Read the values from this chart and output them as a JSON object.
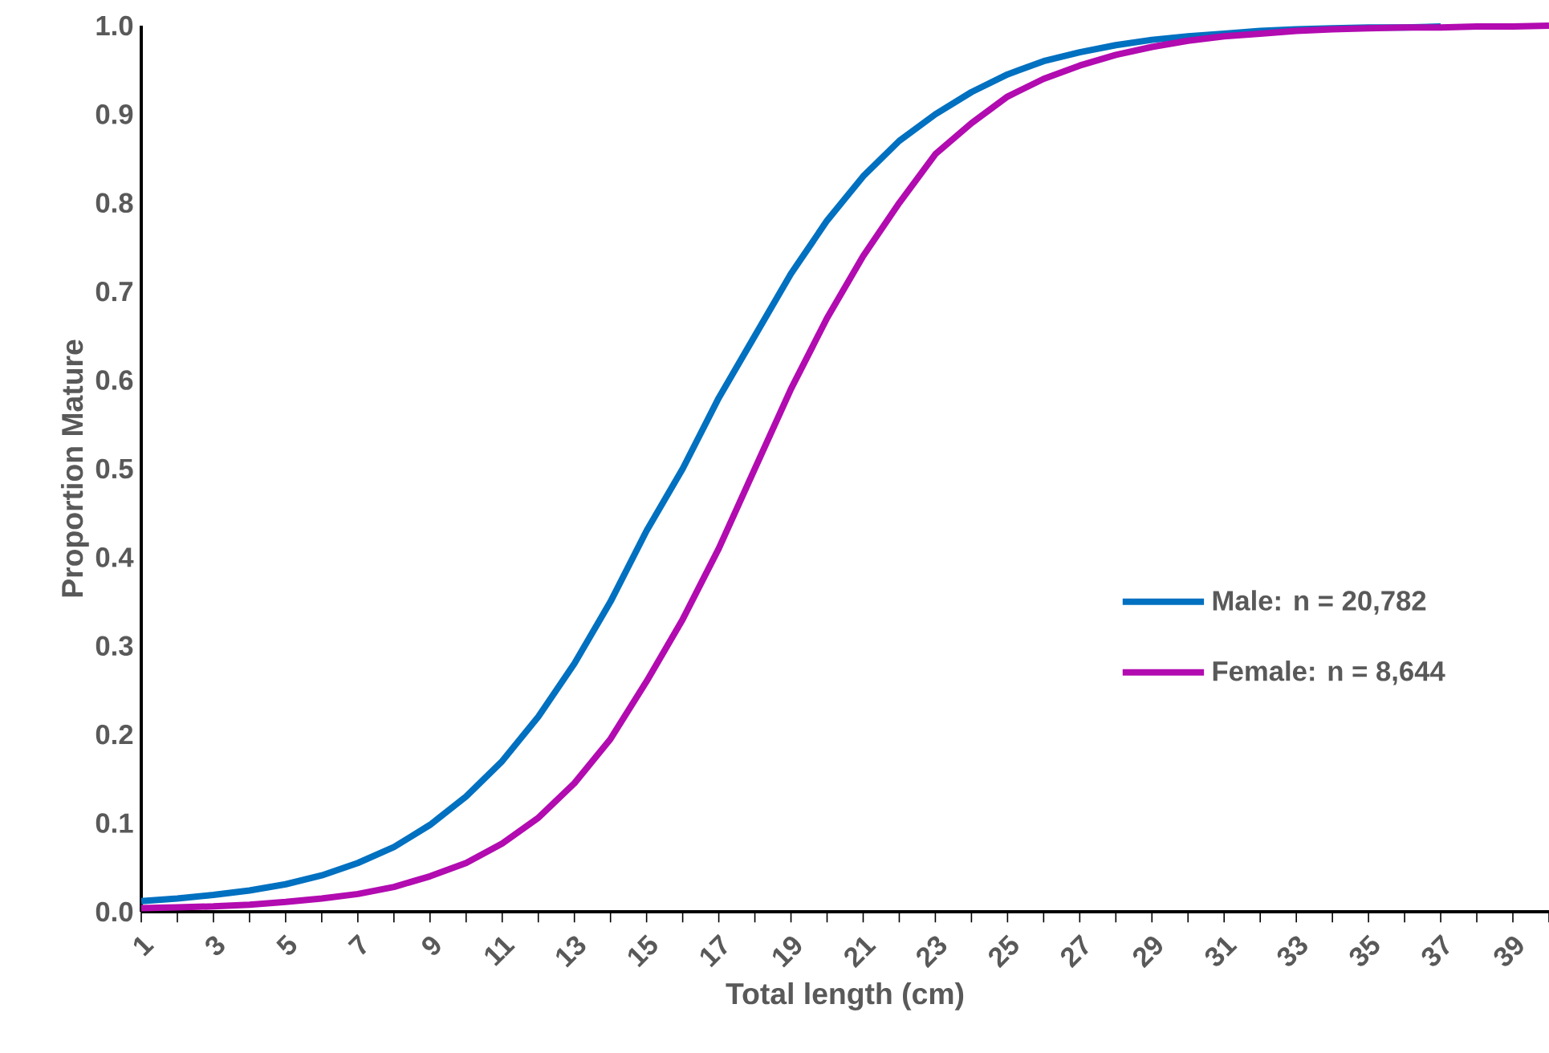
{
  "chart_data": {
    "type": "line",
    "xlabel": "Total length (cm)",
    "ylabel": "Proportion Mature",
    "categories": [
      "1",
      null,
      "3",
      null,
      "5",
      null,
      "7",
      null,
      "9",
      null,
      "11",
      null,
      "13",
      null,
      "15",
      null,
      "17",
      null,
      "19",
      null,
      "21",
      null,
      "23",
      null,
      "25",
      null,
      "27",
      null,
      "29",
      null,
      "31",
      null,
      "33",
      null,
      "35",
      null,
      "37",
      null,
      "39",
      null
    ],
    "ylim": [
      0,
      1
    ],
    "yticks": [
      {
        "value": 0,
        "label": "0.0"
      },
      {
        "value": 0.1,
        "label": "0.1"
      },
      {
        "value": 0.2,
        "label": "0.2"
      },
      {
        "value": 0.3,
        "label": "0.3"
      },
      {
        "value": 0.4,
        "label": "0.4"
      },
      {
        "value": 0.5,
        "label": "0.5"
      },
      {
        "value": 0.6,
        "label": "0.6"
      },
      {
        "value": 0.7,
        "label": "0.7"
      },
      {
        "value": 0.8,
        "label": "0.8"
      },
      {
        "value": 0.9,
        "label": "0.9"
      },
      {
        "value": 1,
        "label": "1.0"
      }
    ],
    "grid": false,
    "legend": "center right",
    "marker": "none",
    "line_style": "solid",
    "series": [
      {
        "name": "Male: n = 20,782",
        "color": "#0070c0",
        "values": [
          0.012,
          0.015,
          0.019,
          0.024,
          0.031,
          0.041,
          0.055,
          0.073,
          0.098,
          0.13,
          0.17,
          0.22,
          0.28,
          0.35,
          0.43,
          0.5,
          0.58,
          0.65,
          0.72,
          0.78,
          0.83,
          0.87,
          0.9,
          0.925,
          0.945,
          0.96,
          0.97,
          0.978,
          0.984,
          0.988,
          0.991,
          0.994,
          0.996,
          0.997,
          0.998,
          0.998,
          0.999,
          null,
          null,
          null
        ]
      },
      {
        "name": "Female: n = 8,644",
        "color": "#b20bb0",
        "values": [
          0.004,
          0.005,
          0.006,
          0.008,
          0.011,
          0.015,
          0.02,
          0.028,
          0.04,
          0.055,
          0.077,
          0.106,
          0.145,
          0.195,
          0.26,
          0.33,
          0.41,
          0.5,
          0.59,
          0.67,
          0.74,
          0.8,
          0.855,
          0.89,
          0.92,
          0.94,
          0.955,
          0.967,
          0.976,
          0.983,
          0.988,
          0.991,
          0.994,
          0.996,
          0.997,
          0.998,
          0.998,
          0.999,
          0.999,
          1.0
        ]
      }
    ]
  }
}
